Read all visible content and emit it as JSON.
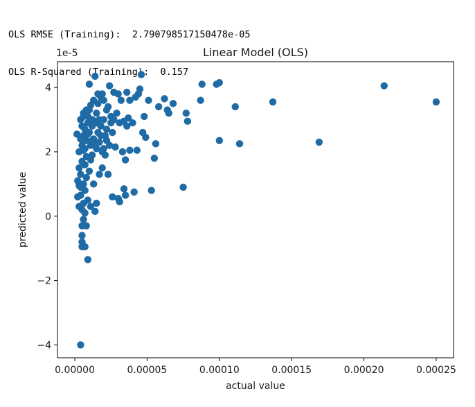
{
  "console": {
    "line1_label": "OLS RMSE (Training):",
    "line1_value": "2.790798517150478e-05",
    "line2_label": "OLS R-Squared (Training):",
    "line2_value": "0.157"
  },
  "chart_data": {
    "type": "scatter",
    "title": "Linear Model (OLS)",
    "xlabel": "actual value",
    "ylabel": "predicted value",
    "y_offset_label": "1e-5",
    "xlim": [
      -1.2e-05,
      0.000262
    ],
    "ylim": [
      -4.4,
      4.8
    ],
    "xticks": [
      0,
      5e-05,
      0.0001,
      0.00015,
      0.0002,
      0.00025
    ],
    "xtick_labels": [
      "0.00000",
      "0.00005",
      "0.00010",
      "0.00015",
      "0.00020",
      "0.00025"
    ],
    "yticks": [
      -4,
      -2,
      0,
      2,
      4
    ],
    "ytick_labels": [
      "−4",
      "−2",
      "0",
      "2",
      "4"
    ],
    "y_units": "1e-5",
    "grid": false,
    "marker_color": "#1f6ba5",
    "points": [
      [
        1.5e-06,
        2.55
      ],
      [
        2e-06,
        1.1
      ],
      [
        2e-06,
        0.6
      ],
      [
        3e-06,
        0.3
      ],
      [
        3e-06,
        1.5
      ],
      [
        3e-06,
        2.0
      ],
      [
        4e-06,
        2.4
      ],
      [
        4e-06,
        3.0
      ],
      [
        4e-06,
        0.9
      ],
      [
        4e-06,
        1.3
      ],
      [
        5e-06,
        0.2
      ],
      [
        5e-06,
        -0.3
      ],
      [
        5e-06,
        -0.6
      ],
      [
        5e-06,
        -0.8
      ],
      [
        5e-06,
        -0.95
      ],
      [
        5e-06,
        1.7
      ],
      [
        5e-06,
        2.2
      ],
      [
        5e-06,
        2.8
      ],
      [
        6e-06,
        0.4
      ],
      [
        6e-06,
        1.0
      ],
      [
        6e-06,
        3.2
      ],
      [
        6e-06,
        3.1
      ],
      [
        6e-06,
        2.5
      ],
      [
        6e-06,
        -0.1
      ],
      [
        7e-06,
        -0.95
      ],
      [
        7e-06,
        1.6
      ],
      [
        7e-06,
        2.1
      ],
      [
        7e-06,
        2.7
      ],
      [
        7e-06,
        0.1
      ],
      [
        7e-06,
        0.8
      ],
      [
        8e-06,
        -0.3
      ],
      [
        8e-06,
        3.3
      ],
      [
        8e-06,
        2.35
      ],
      [
        8e-06,
        1.85
      ],
      [
        8e-06,
        1.2
      ],
      [
        9e-06,
        3.1
      ],
      [
        9e-06,
        -1.35
      ],
      [
        9e-06,
        2.9
      ],
      [
        9e-06,
        0.5
      ],
      [
        1e-05,
        4.1
      ],
      [
        1e-05,
        2.6
      ],
      [
        1e-05,
        1.4
      ],
      [
        1.1e-05,
        3.45
      ],
      [
        1.1e-05,
        2.2
      ],
      [
        1.1e-05,
        0.3
      ],
      [
        1.2e-05,
        3.0
      ],
      [
        1.2e-05,
        1.9
      ],
      [
        1.2e-05,
        2.8
      ],
      [
        1.3e-05,
        3.6
      ],
      [
        1.3e-05,
        2.4
      ],
      [
        1.3e-05,
        1.0
      ],
      [
        1.4e-05,
        4.35
      ],
      [
        1.4e-05,
        2.95
      ],
      [
        1.4e-05,
        0.15
      ],
      [
        1.5e-05,
        3.2
      ],
      [
        1.5e-05,
        2.1
      ],
      [
        1.5e-05,
        0.4
      ],
      [
        1.6e-05,
        3.5
      ],
      [
        1.6e-05,
        2.6
      ],
      [
        1.6e-05,
        3.8
      ],
      [
        1.7e-05,
        2.3
      ],
      [
        1.7e-05,
        1.3
      ],
      [
        1.8e-05,
        3.7
      ],
      [
        1.8e-05,
        2.8
      ],
      [
        1.9e-05,
        3.8
      ],
      [
        1.9e-05,
        2.0
      ],
      [
        1.9e-05,
        1.5
      ],
      [
        2e-05,
        3.0
      ],
      [
        2e-05,
        3.6
      ],
      [
        2.1e-05,
        2.5
      ],
      [
        2.1e-05,
        1.9
      ],
      [
        2.2e-05,
        3.3
      ],
      [
        2.2e-05,
        2.7
      ],
      [
        2.3e-05,
        1.3
      ],
      [
        2.3e-05,
        3.4
      ],
      [
        2.4e-05,
        2.2
      ],
      [
        2.4e-05,
        4.05
      ],
      [
        2.5e-05,
        2.9
      ],
      [
        2.5e-05,
        3.1
      ],
      [
        2.6e-05,
        2.6
      ],
      [
        2.6e-05,
        0.6
      ],
      [
        2.7e-05,
        3.0
      ],
      [
        2.7e-05,
        3.85
      ],
      [
        2.8e-05,
        2.15
      ],
      [
        2.9e-05,
        3.2
      ],
      [
        3e-05,
        3.8
      ],
      [
        3e-05,
        0.55
      ],
      [
        3.1e-05,
        2.9
      ],
      [
        3.1e-05,
        0.45
      ],
      [
        3.2e-05,
        3.6
      ],
      [
        3.3e-05,
        2.0
      ],
      [
        3.4e-05,
        2.95
      ],
      [
        3.4e-05,
        0.85
      ],
      [
        3.5e-05,
        1.75
      ],
      [
        3.5e-05,
        0.65
      ],
      [
        3.6e-05,
        3.85
      ],
      [
        3.6e-05,
        2.8
      ],
      [
        3.7e-05,
        3.05
      ],
      [
        3.8e-05,
        2.05
      ],
      [
        3.8e-05,
        3.6
      ],
      [
        4e-05,
        2.9
      ],
      [
        4.1e-05,
        0.75
      ],
      [
        4.2e-05,
        3.7
      ],
      [
        4.3e-05,
        2.05
      ],
      [
        4.4e-05,
        3.8
      ],
      [
        4.5e-05,
        3.95
      ],
      [
        4.6e-05,
        4.4
      ],
      [
        4.7e-05,
        2.6
      ],
      [
        4.8e-05,
        3.1
      ],
      [
        4.9e-05,
        2.45
      ],
      [
        5.1e-05,
        3.6
      ],
      [
        5.3e-05,
        0.8
      ],
      [
        5.5e-05,
        1.8
      ],
      [
        5.6e-05,
        2.25
      ],
      [
        5.8e-05,
        3.4
      ],
      [
        6.2e-05,
        3.65
      ],
      [
        6.4e-05,
        3.3
      ],
      [
        6.5e-05,
        3.2
      ],
      [
        6.8e-05,
        3.5
      ],
      [
        7.5e-05,
        0.9
      ],
      [
        7.7e-05,
        3.2
      ],
      [
        7.8e-05,
        2.95
      ],
      [
        8.7e-05,
        3.6
      ],
      [
        8.8e-05,
        4.1
      ],
      [
        9.8e-05,
        4.1
      ],
      [
        0.0001,
        2.35
      ],
      [
        0.0001,
        4.15
      ],
      [
        0.000111,
        3.4
      ],
      [
        0.000114,
        2.25
      ],
      [
        0.000137,
        3.55
      ],
      [
        0.000169,
        2.3
      ],
      [
        0.000214,
        4.05
      ],
      [
        0.00025,
        3.55
      ],
      [
        4e-06,
        -4.0
      ],
      [
        3e-06,
        0.95
      ],
      [
        4e-06,
        0.65
      ],
      [
        6e-06,
        2.05
      ],
      [
        7e-06,
        2.4
      ],
      [
        9e-06,
        2.55
      ],
      [
        1e-05,
        3.3
      ],
      [
        1.1e-05,
        1.75
      ],
      [
        1.2e-05,
        2.35
      ],
      [
        1.4e-05,
        2.25
      ],
      [
        1.5e-05,
        2.9
      ],
      [
        1.7e-05,
        3.0
      ],
      [
        1.8e-05,
        2.5
      ],
      [
        2e-05,
        2.1
      ],
      [
        2.2e-05,
        2.35
      ]
    ]
  }
}
